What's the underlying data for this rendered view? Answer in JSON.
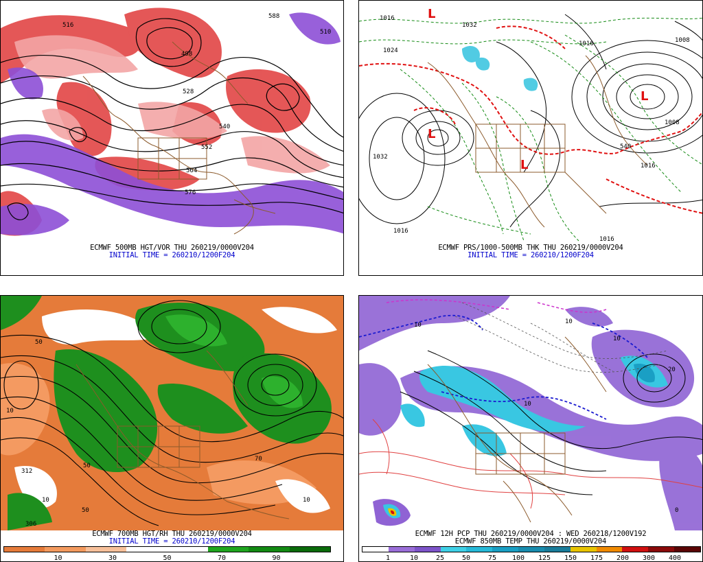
{
  "panels": [
    {
      "id": "tl",
      "line1": "ECMWF 500MB HGT/VOR THU 260219/0000V204",
      "line2": "INITIAL TIME = 260210/1200F204",
      "contour_labels": [
        "516",
        "528",
        "540",
        "552",
        "564",
        "576",
        "588",
        "498",
        "510"
      ],
      "highs_lows": []
    },
    {
      "id": "tr",
      "line1": "ECMWF PRS/1000-500MB THK THU 260219/0000V204",
      "line2": "INITIAL TIME = 260210/1200F204",
      "contour_labels": [
        "1016",
        "1032",
        "1008",
        "1024",
        "1016",
        "1032",
        "1016",
        "540",
        "1016",
        "1008",
        "1016"
      ],
      "highs_lows": [
        "L",
        "L",
        "L",
        "L"
      ]
    },
    {
      "id": "bl",
      "line1": "ECMWF 700MB HGT/RH THU 260219/0000V204",
      "line2": "INITIAL TIME = 260210/1200F204",
      "contour_labels": [
        "50",
        "10",
        "50",
        "312",
        "70",
        "10",
        "50",
        "10",
        "306"
      ],
      "colorbar": {
        "labels": [
          "10",
          "30",
          "50",
          "70",
          "90"
        ],
        "colors": [
          "#e57b3a",
          "#f39a5e",
          "#f7c09a",
          "#ffffff",
          "#ffffff",
          "#1fa51f",
          "#138a13",
          "#0a6b0a"
        ]
      }
    },
    {
      "id": "br",
      "line1": "ECMWF 12H PCP THU 260219/0000V204 : WED 260218/1200V192",
      "line2": "ECMWF 850MB TEMP THU 260219/0000V204",
      "contour_labels": [
        "10",
        "10",
        "10",
        "20",
        "10",
        "0"
      ],
      "colorbar": {
        "labels": [
          "1",
          "10",
          "25",
          "50",
          "75",
          "100",
          "125",
          "150",
          "175",
          "200",
          "300",
          "400"
        ],
        "colors": [
          "#ffffff",
          "#9a6ed8",
          "#7d54c9",
          "#3fd0e6",
          "#27b9d8",
          "#1a9fc4",
          "#198cae",
          "#1a7c9a",
          "#e8c400",
          "#f08a00",
          "#d01010",
          "#8a0a0a",
          "#5a0505"
        ]
      }
    }
  ]
}
